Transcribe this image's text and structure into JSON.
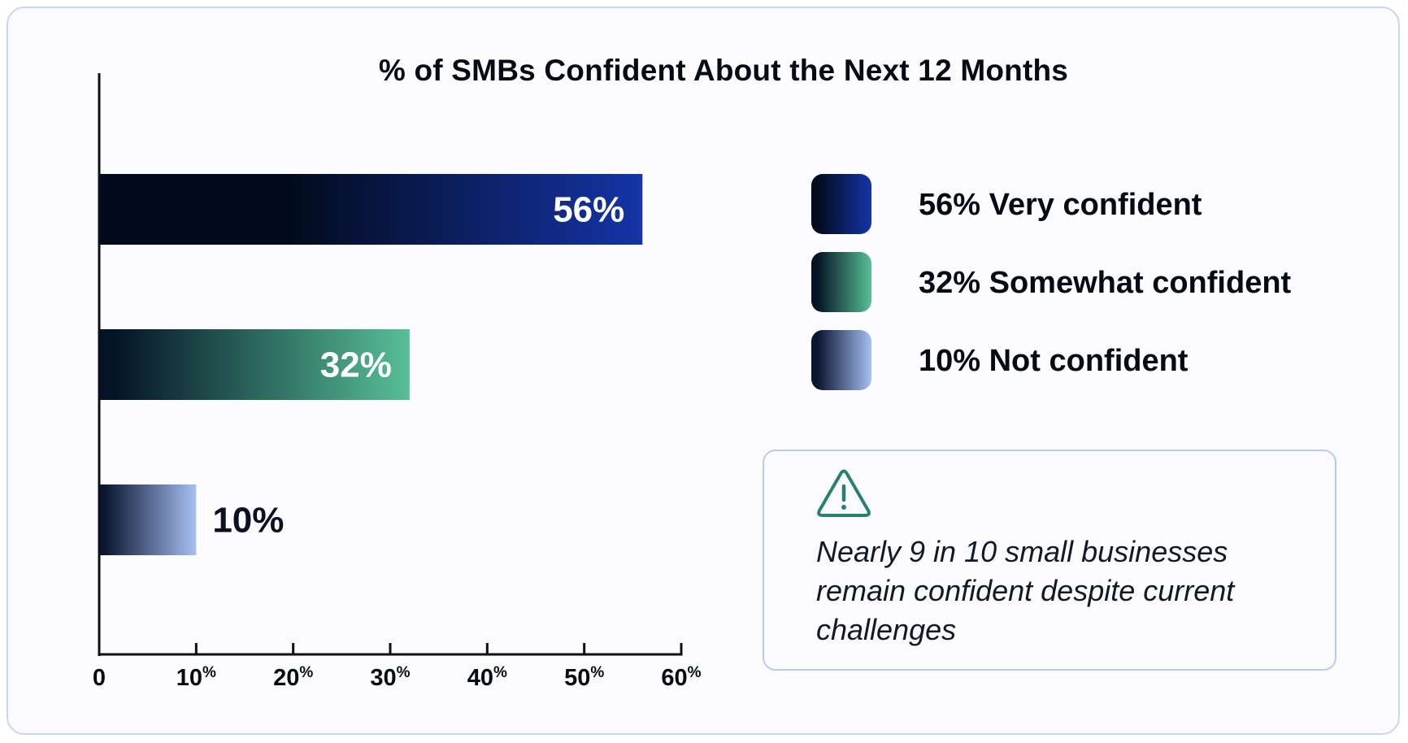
{
  "chart_data": {
    "type": "bar",
    "orientation": "horizontal",
    "title": "% of SMBs Confident About the Next 12 Months",
    "xlabel": "",
    "ylabel": "",
    "xlim": [
      0,
      60
    ],
    "grid": false,
    "legend_position": "right",
    "x_ticks": [
      {
        "value": 0,
        "label": "0",
        "suffix": ""
      },
      {
        "value": 10,
        "label": "10",
        "suffix": "%"
      },
      {
        "value": 20,
        "label": "20",
        "suffix": "%"
      },
      {
        "value": 30,
        "label": "30",
        "suffix": "%"
      },
      {
        "value": 40,
        "label": "40",
        "suffix": "%"
      },
      {
        "value": 50,
        "label": "50",
        "suffix": "%"
      },
      {
        "value": 60,
        "label": "60",
        "suffix": "%"
      }
    ],
    "bars": [
      {
        "value": 56,
        "label": "56%",
        "legend": "56% Very confident",
        "color_start": "#020b1d",
        "color_end": "#1534a6",
        "label_color": "#ffffff"
      },
      {
        "value": 32,
        "label": "32%",
        "legend": "32% Somewhat confident",
        "color_start": "#041426",
        "color_end": "#58bf97",
        "label_color": "#ffffff"
      },
      {
        "value": 10,
        "label": "10%",
        "legend": "10% Not confident",
        "color_start": "#0a1530",
        "color_end": "#a7bff3",
        "label_color": "#0b1120"
      }
    ]
  },
  "callout": {
    "icon": "warning-triangle-icon",
    "icon_color": "#2a7f70",
    "text": "Nearly 9 in 10 small businesses remain confident despite current challenges"
  }
}
